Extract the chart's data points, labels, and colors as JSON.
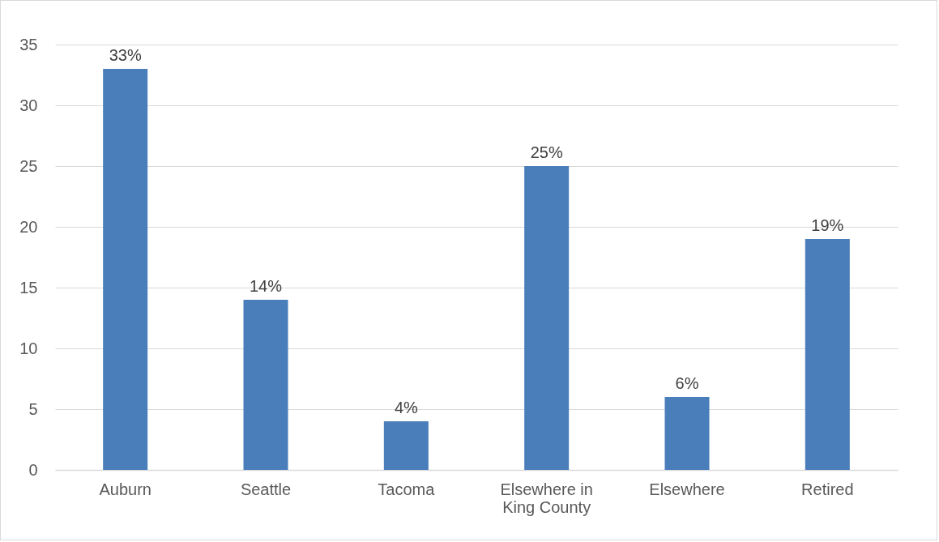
{
  "chart_data": {
    "type": "bar",
    "categories": [
      "Auburn",
      "Seattle",
      "Tacoma",
      "Elsewhere in King County",
      "Elsewhere",
      "Retired"
    ],
    "values": [
      33,
      14,
      4,
      25,
      6,
      19
    ],
    "value_labels": [
      "33%",
      "14%",
      "4%",
      "25%",
      "6%",
      "19%"
    ],
    "color": "#4a7ebb",
    "ylim": [
      0,
      35
    ],
    "yticks": [
      0,
      5,
      10,
      15,
      20,
      25,
      30,
      35
    ],
    "grid": "y"
  }
}
